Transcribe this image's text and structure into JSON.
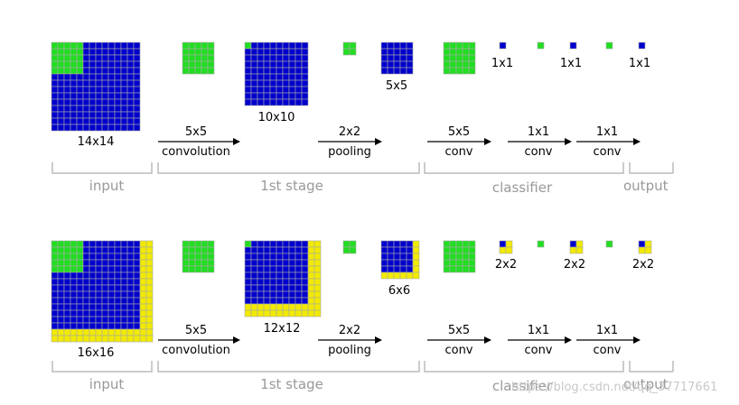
{
  "colors": {
    "blue": "#0000cc",
    "green": "#22dd22",
    "yellow": "#f2ea00",
    "grid_line": "#aaaaaa",
    "bracket": "#bbbbbb",
    "stage_label": "#999999",
    "text": "#111111"
  },
  "rows": [
    {
      "input_size": "14x14",
      "conv_size": "10x10",
      "pool_size": "5x5",
      "out_size": "1x1",
      "padding": false
    },
    {
      "input_size": "16x16",
      "conv_size": "12x12",
      "pool_size": "6x6",
      "out_size": "2x2",
      "padding": true
    }
  ],
  "ops": {
    "conv1_top": "5x5",
    "conv1_bottom": "convolution",
    "pool_top": "2x2",
    "pool_bottom": "pooling",
    "c5_top": "5x5",
    "c5_bottom": "conv",
    "c1a_top": "1x1",
    "c1a_bottom": "conv",
    "c1b_top": "1x1",
    "c1b_bottom": "conv"
  },
  "sections": {
    "input": "input",
    "stage": "1st stage",
    "classifier": "classifier",
    "output": "output"
  },
  "watermark": "https://blog.csdn.net/qq_37717661"
}
